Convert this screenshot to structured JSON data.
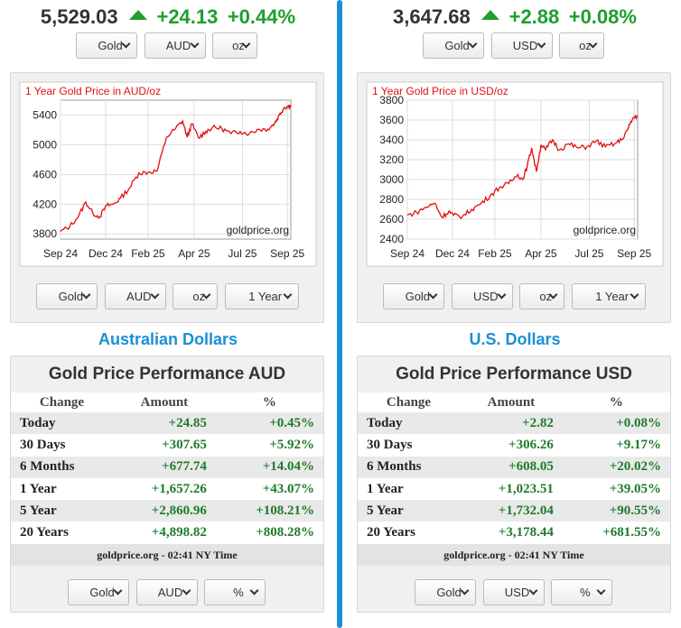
{
  "panels": [
    {
      "id": "aud",
      "price": "5,529.03",
      "change": "+24.13",
      "change_pct": "+0.44%",
      "top_selects": [
        "Gold",
        "AUD",
        "oz"
      ],
      "chart_selects": [
        "Gold",
        "AUD",
        "oz",
        "1 Year"
      ],
      "bottom_selects": [
        "Gold",
        "AUD",
        "%"
      ],
      "region_title": "Australian Dollars",
      "perf_title": "Gold Price Performance AUD",
      "table_headers": [
        "Change",
        "Amount",
        "%"
      ],
      "rows": [
        {
          "label": "Today",
          "amount": "+24.85",
          "pct": "+0.45%"
        },
        {
          "label": "30 Days",
          "amount": "+307.65",
          "pct": "+5.92%"
        },
        {
          "label": "6 Months",
          "amount": "+677.74",
          "pct": "+14.04%"
        },
        {
          "label": "1 Year",
          "amount": "+1,657.26",
          "pct": "+43.07%"
        },
        {
          "label": "5 Year",
          "amount": "+2,860.96",
          "pct": "+108.21%"
        },
        {
          "label": "20 Years",
          "amount": "+4,898.82",
          "pct": "+808.28%"
        }
      ],
      "footer": "goldprice.org - 02:41 NY Time",
      "chart_data": {
        "type": "line",
        "title": "1 Year Gold Price in AUD/oz",
        "watermark": "goldprice.org",
        "line_color": "#e01010",
        "x_tick_labels": [
          "Sep 24",
          "Dec 24",
          "Feb 25",
          "Apr 25",
          "Jul 25",
          "Sep 25"
        ],
        "x_tick_pos": [
          0.0,
          0.196,
          0.38,
          0.58,
          0.79,
          0.985
        ],
        "y_ticks": [
          3800,
          4200,
          4600,
          5000,
          5400
        ],
        "ylim": [
          3730,
          5600
        ],
        "x": [
          0,
          0.04,
          0.08,
          0.11,
          0.14,
          0.17,
          0.2,
          0.23,
          0.26,
          0.3,
          0.34,
          0.38,
          0.42,
          0.46,
          0.5,
          0.53,
          0.55,
          0.57,
          0.6,
          0.63,
          0.66,
          0.7,
          0.74,
          0.78,
          0.82,
          0.86,
          0.9,
          0.93,
          0.95,
          0.97,
          0.99,
          1.0
        ],
        "values": [
          3830,
          3900,
          4050,
          4230,
          4080,
          4030,
          4180,
          4200,
          4280,
          4420,
          4620,
          4630,
          4650,
          5100,
          5220,
          5320,
          5100,
          5280,
          5090,
          5180,
          5230,
          5220,
          5150,
          5180,
          5150,
          5210,
          5210,
          5290,
          5400,
          5500,
          5520,
          5529
        ]
      }
    },
    {
      "id": "usd",
      "price": "3,647.68",
      "change": "+2.88",
      "change_pct": "+0.08%",
      "top_selects": [
        "Gold",
        "USD",
        "oz"
      ],
      "chart_selects": [
        "Gold",
        "USD",
        "oz",
        "1 Year"
      ],
      "bottom_selects": [
        "Gold",
        "USD",
        "%"
      ],
      "region_title": "U.S. Dollars",
      "perf_title": "Gold Price Performance USD",
      "table_headers": [
        "Change",
        "Amount",
        "%"
      ],
      "rows": [
        {
          "label": "Today",
          "amount": "+2.82",
          "pct": "+0.08%"
        },
        {
          "label": "30 Days",
          "amount": "+306.26",
          "pct": "+9.17%"
        },
        {
          "label": "6 Months",
          "amount": "+608.05",
          "pct": "+20.02%"
        },
        {
          "label": "1 Year",
          "amount": "+1,023.51",
          "pct": "+39.05%"
        },
        {
          "label": "5 Year",
          "amount": "+1,732.04",
          "pct": "+90.55%"
        },
        {
          "label": "20 Years",
          "amount": "+3,178.44",
          "pct": "+681.55%"
        }
      ],
      "footer": "goldprice.org - 02:41 NY Time",
      "chart_data": {
        "type": "line",
        "title": "1 Year Gold Price in USD/oz",
        "watermark": "goldprice.org",
        "line_color": "#e01010",
        "x_tick_labels": [
          "Sep 24",
          "Dec 24",
          "Feb 25",
          "Apr 25",
          "Jul 25",
          "Sep 25"
        ],
        "x_tick_pos": [
          0.0,
          0.196,
          0.38,
          0.58,
          0.79,
          0.985
        ],
        "y_ticks": [
          2400,
          2600,
          2800,
          3000,
          3200,
          3400,
          3600,
          3800
        ],
        "ylim": [
          2400,
          3800
        ],
        "x": [
          0,
          0.04,
          0.08,
          0.12,
          0.15,
          0.18,
          0.2,
          0.24,
          0.28,
          0.32,
          0.36,
          0.4,
          0.44,
          0.48,
          0.5,
          0.52,
          0.54,
          0.56,
          0.58,
          0.6,
          0.63,
          0.66,
          0.7,
          0.74,
          0.78,
          0.82,
          0.86,
          0.9,
          0.93,
          0.96,
          0.98,
          1.0
        ],
        "values": [
          2640,
          2670,
          2720,
          2760,
          2620,
          2680,
          2640,
          2630,
          2700,
          2760,
          2840,
          2920,
          2960,
          3050,
          3000,
          3130,
          3320,
          3080,
          3350,
          3300,
          3400,
          3300,
          3360,
          3320,
          3330,
          3390,
          3330,
          3360,
          3400,
          3520,
          3620,
          3648
        ]
      }
    }
  ]
}
